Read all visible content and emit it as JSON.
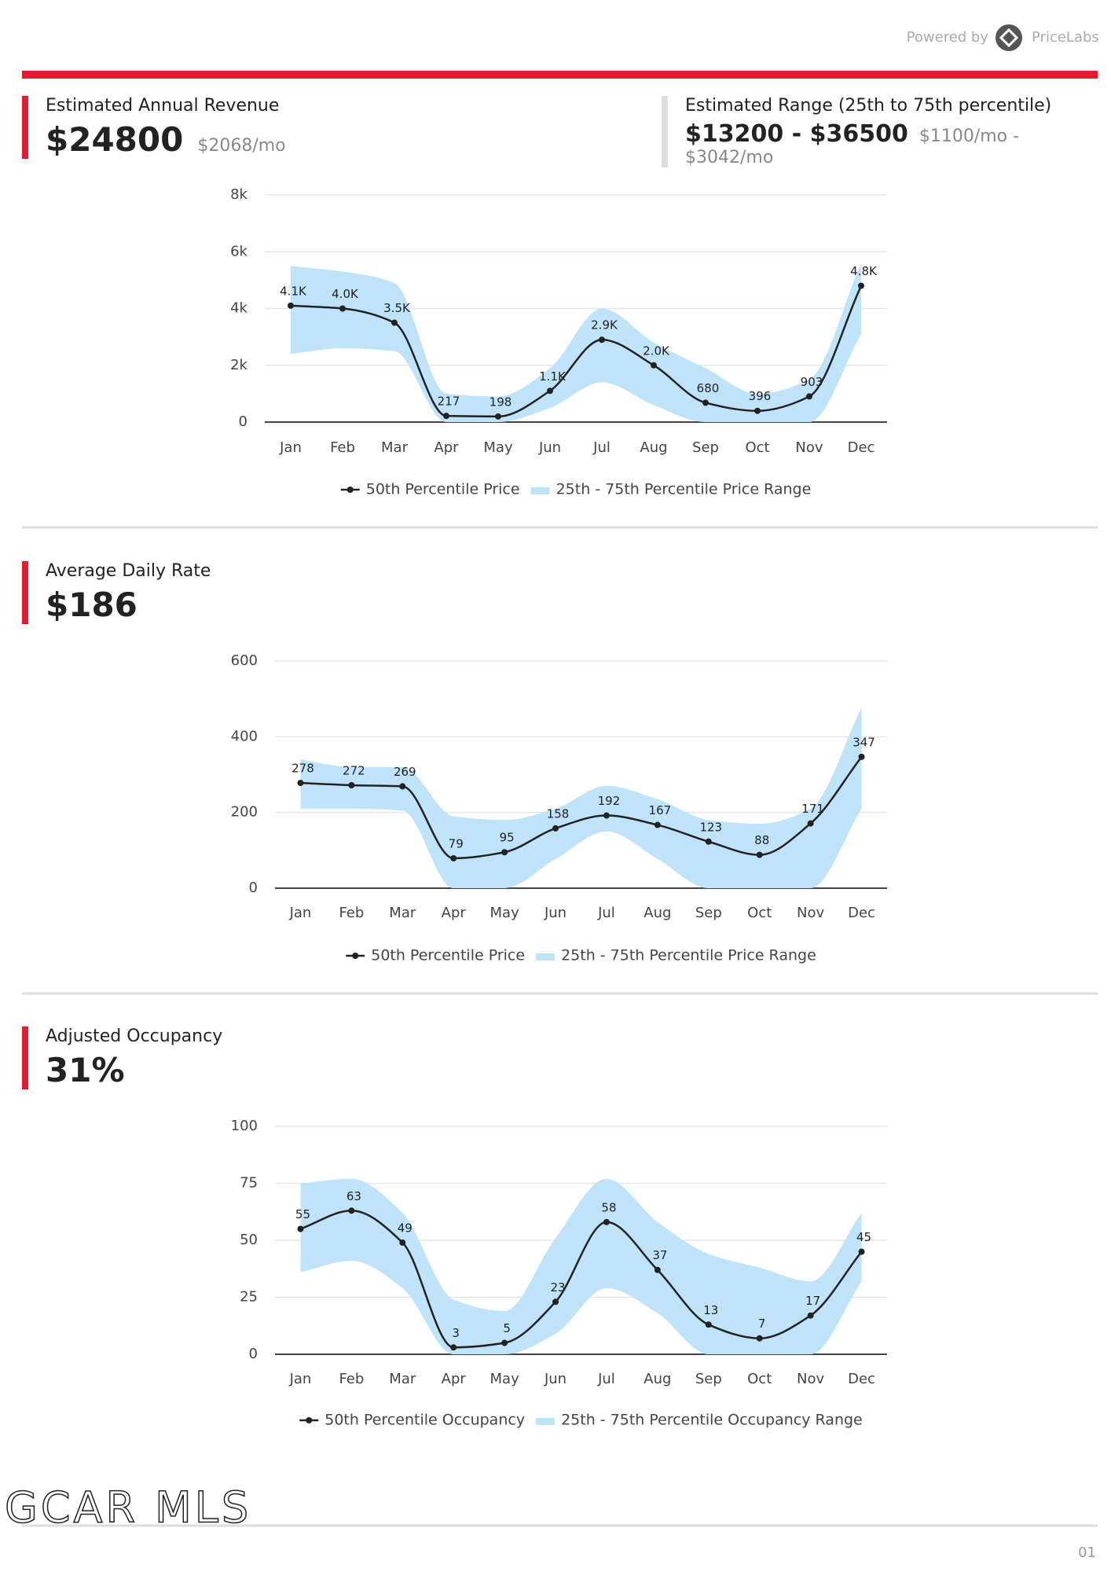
{
  "header": {
    "powered_by": "Powered by",
    "brand": "PriceLabs"
  },
  "sections": [
    {
      "title": "Estimated Annual Revenue",
      "value": "$24800",
      "sub": "$2068/mo",
      "range_title": "Estimated Range (25th to 75th percentile)",
      "range_value": "$13200 - $36500",
      "range_sub": "$1100/mo - $3042/mo"
    },
    {
      "title": "Average Daily Rate",
      "value": "$186"
    },
    {
      "title": "Adjusted Occupancy",
      "value": "31%"
    }
  ],
  "chart_data": [
    {
      "type": "line",
      "categories": [
        "Jan",
        "Feb",
        "Mar",
        "Apr",
        "May",
        "Jun",
        "Jul",
        "Aug",
        "Sep",
        "Oct",
        "Nov",
        "Dec"
      ],
      "ylim": [
        0,
        8000
      ],
      "yticks": [
        0,
        {
          "value": 2000,
          "label": "2k"
        },
        {
          "value": 4000,
          "label": "4k"
        },
        {
          "value": 6000,
          "label": "6k"
        },
        {
          "value": 8000,
          "label": "8k"
        }
      ],
      "grid": true,
      "series": [
        {
          "name": "50th Percentile Price",
          "color": "#222222",
          "values": [
            4100,
            4000,
            3500,
            217,
            198,
            1100,
            2900,
            2000,
            680,
            396,
            903,
            4800
          ],
          "value_labels": [
            "4.1K",
            "4.0K",
            "3.5K",
            "217",
            "198",
            "1.1K",
            "2.9K",
            "2.0K",
            "680",
            "396",
            "903",
            "4.8K"
          ]
        },
        {
          "name": "25th - 75th Percentile Price Range",
          "color": "#bfe3f9",
          "high": [
            5500,
            5300,
            4900,
            1000,
            900,
            1900,
            4000,
            2800,
            1900,
            1000,
            1500,
            5600
          ],
          "low": [
            2400,
            2600,
            2500,
            0,
            0,
            500,
            1400,
            600,
            0,
            0,
            0,
            3100
          ]
        }
      ]
    },
    {
      "type": "line",
      "categories": [
        "Jan",
        "Feb",
        "Mar",
        "Apr",
        "May",
        "Jun",
        "Jul",
        "Aug",
        "Sep",
        "Oct",
        "Nov",
        "Dec"
      ],
      "ylim": [
        0,
        600
      ],
      "yticks": [
        0,
        200,
        400,
        600
      ],
      "grid": true,
      "series": [
        {
          "name": "50th Percentile Price",
          "color": "#222222",
          "values": [
            278,
            272,
            269,
            79,
            95,
            158,
            192,
            167,
            123,
            88,
            171,
            347
          ]
        },
        {
          "name": "25th - 75th Percentile Price Range",
          "color": "#bfe3f9",
          "high": [
            340,
            320,
            320,
            190,
            180,
            210,
            270,
            235,
            180,
            170,
            210,
            477
          ],
          "low": [
            210,
            210,
            205,
            0,
            0,
            77,
            150,
            77,
            0,
            0,
            0,
            210
          ]
        }
      ]
    },
    {
      "type": "line",
      "categories": [
        "Jan",
        "Feb",
        "Mar",
        "Apr",
        "May",
        "Jun",
        "Jul",
        "Aug",
        "Sep",
        "Oct",
        "Nov",
        "Dec"
      ],
      "ylim": [
        0,
        100
      ],
      "yticks": [
        0,
        25,
        50,
        75,
        100
      ],
      "grid": true,
      "series": [
        {
          "name": "50th Percentile Occupancy",
          "color": "#222222",
          "values": [
            55,
            63,
            49,
            3,
            5,
            23,
            58,
            37,
            13,
            7,
            17,
            45
          ]
        },
        {
          "name": "25th - 75th Percentile Occupancy Range",
          "color": "#bfe3f9",
          "high": [
            75,
            77,
            62,
            24,
            19,
            51,
            77,
            58,
            44,
            38,
            32,
            62
          ],
          "low": [
            36,
            41,
            29,
            0,
            0,
            9,
            29,
            18,
            0,
            0,
            0,
            32
          ]
        }
      ]
    }
  ],
  "footer": {
    "brand": "GCAR MLS",
    "page": "01"
  }
}
